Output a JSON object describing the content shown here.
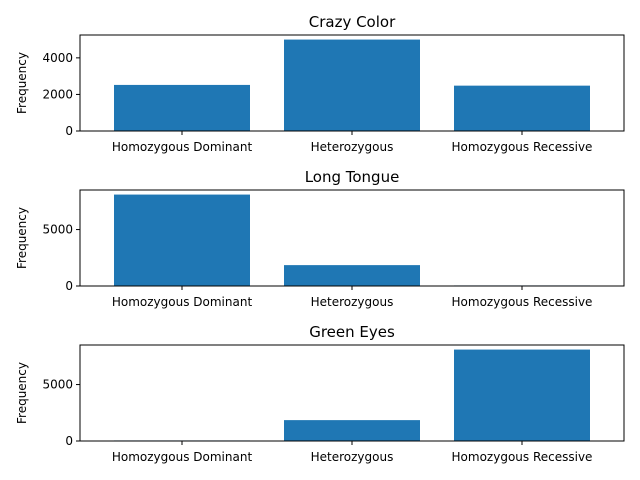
{
  "chart_data": [
    {
      "type": "bar",
      "title": "Crazy Color",
      "ylabel": "Frequency",
      "categories": [
        "Homozygous Dominant",
        "Heterozygous",
        "Homozygous Recessive"
      ],
      "values": [
        2520,
        5000,
        2480
      ],
      "ylim": [
        0,
        5250
      ],
      "yticks": [
        0,
        2000,
        4000
      ],
      "color": "#1f77b4"
    },
    {
      "type": "bar",
      "title": "Long Tongue",
      "ylabel": "Frequency",
      "categories": [
        "Homozygous Dominant",
        "Heterozygous",
        "Homozygous Recessive"
      ],
      "values": [
        8100,
        1850,
        50
      ],
      "ylim": [
        0,
        8505
      ],
      "yticks": [
        0,
        5000
      ],
      "color": "#1f77b4"
    },
    {
      "type": "bar",
      "title": "Green Eyes",
      "ylabel": "Frequency",
      "categories": [
        "Homozygous Dominant",
        "Heterozygous",
        "Homozygous Recessive"
      ],
      "values": [
        50,
        1850,
        8100
      ],
      "ylim": [
        0,
        8505
      ],
      "yticks": [
        0,
        5000
      ],
      "color": "#1f77b4"
    }
  ]
}
